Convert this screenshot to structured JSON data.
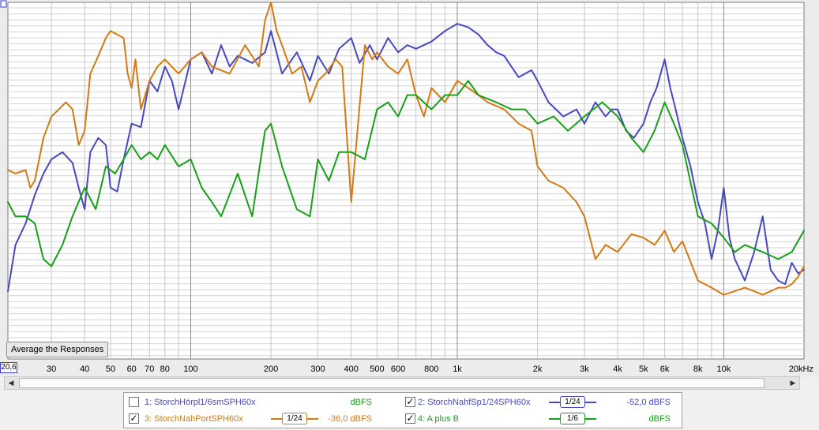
{
  "button": {
    "average_label": "Average the Responses"
  },
  "freq_start": "20,6",
  "scroll": {
    "left_arrow": "◀",
    "right_arrow": "▶"
  },
  "colors": {
    "blue": "#4848c0",
    "orange": "#d47a12",
    "green": "#18a018"
  },
  "legend": {
    "items": [
      {
        "index_name": "1: StorchHörpl1/6smSPH60x",
        "checked": false,
        "check_mark": "",
        "smoothing": "",
        "level": "dBFS",
        "color": "#4848c0"
      },
      {
        "index_name": "2: StorchNahfSp1/24SPH60x",
        "checked": true,
        "check_mark": "✓",
        "smoothing": "1/24",
        "level": "-52,0 dBFS",
        "color": "#4848c0"
      },
      {
        "index_name": "3: StorchNahPortSPH60x",
        "checked": true,
        "check_mark": "✓",
        "smoothing": "1/24",
        "level": "-36,0 dBFS",
        "color": "#d47a12"
      },
      {
        "index_name": "4: A plus B",
        "checked": true,
        "check_mark": "✓",
        "smoothing": "1/6",
        "level": "dBFS",
        "color": "#18a018"
      }
    ]
  },
  "chart_data": {
    "type": "line",
    "x_scale": "log",
    "xlim": [
      20.6,
      20000
    ],
    "x_tick_labels": [
      "30",
      "40",
      "50",
      "60",
      "70",
      "80",
      "100",
      "200",
      "300",
      "400",
      "500",
      "600",
      "800",
      "1k",
      "2k",
      "3k",
      "4k",
      "5k",
      "6k",
      "8k",
      "10k",
      "20kHz"
    ],
    "x_tick_values": [
      30,
      40,
      50,
      60,
      70,
      80,
      100,
      200,
      300,
      400,
      500,
      600,
      800,
      1000,
      2000,
      3000,
      4000,
      5000,
      6000,
      8000,
      10000,
      20000
    ],
    "ylim": [
      0,
      100
    ],
    "y_axis_labels": false,
    "grid": true,
    "series": [
      {
        "name": "2: StorchNahfSp1/24SPH60x",
        "color": "#4848c0",
        "x": [
          20.6,
          22,
          24,
          26,
          28,
          30,
          33,
          36,
          38,
          40,
          42,
          45,
          48,
          50,
          53,
          56,
          60,
          65,
          70,
          75,
          80,
          85,
          90,
          100,
          110,
          120,
          130,
          140,
          150,
          170,
          190,
          200,
          220,
          250,
          280,
          300,
          330,
          360,
          400,
          430,
          470,
          500,
          550,
          600,
          650,
          700,
          800,
          900,
          1000,
          1100,
          1200,
          1300,
          1400,
          1500,
          1700,
          1900,
          2000,
          2200,
          2500,
          2800,
          3000,
          3300,
          3600,
          3800,
          4000,
          4300,
          4600,
          5000,
          5300,
          5600,
          6000,
          6300,
          6600,
          7000,
          7500,
          8000,
          8500,
          9000,
          9500,
          10000,
          10500,
          11000,
          12000,
          13000,
          14000,
          15000,
          16000,
          17000,
          18000,
          19000,
          20000
        ],
        "y": [
          19,
          32,
          38,
          46,
          52,
          56,
          58,
          55,
          48,
          42,
          58,
          62,
          60,
          48,
          47,
          56,
          66,
          65,
          78,
          75,
          82,
          78,
          70,
          84,
          86,
          80,
          88,
          82,
          85,
          83,
          86,
          92,
          80,
          86,
          78,
          85,
          80,
          87,
          90,
          83,
          88,
          84,
          90,
          86,
          88,
          87,
          89,
          92,
          94,
          93,
          91,
          88,
          86,
          85,
          79,
          81,
          78,
          72,
          68,
          70,
          66,
          72,
          68,
          70,
          70,
          64,
          62,
          66,
          72,
          76,
          84,
          76,
          70,
          62,
          54,
          44,
          38,
          28,
          36,
          48,
          34,
          28,
          22,
          30,
          40,
          25,
          22,
          21,
          27,
          24,
          25
        ]
      },
      {
        "name": "3: StorchNahPortSPH60x",
        "color": "#d47a12",
        "x": [
          20.6,
          22,
          24,
          25,
          26,
          28,
          30,
          32,
          34,
          36,
          38,
          40,
          42,
          45,
          48,
          50,
          53,
          56,
          58,
          60,
          62,
          65,
          70,
          75,
          80,
          90,
          100,
          110,
          120,
          140,
          160,
          180,
          190,
          200,
          210,
          220,
          240,
          260,
          280,
          300,
          320,
          350,
          370,
          400,
          420,
          450,
          480,
          500,
          550,
          600,
          650,
          700,
          750,
          800,
          900,
          1000,
          1100,
          1200,
          1300,
          1500,
          1700,
          1900,
          2000,
          2200,
          2500,
          2800,
          3000,
          3300,
          3600,
          4000,
          4500,
          5000,
          5500,
          6000,
          6500,
          7000,
          8000,
          9000,
          10000,
          11000,
          12000,
          13000,
          14000,
          15000,
          16000,
          17000,
          18000,
          19000,
          20000
        ],
        "y": [
          53,
          52,
          53,
          48,
          50,
          62,
          68,
          70,
          72,
          70,
          60,
          64,
          80,
          85,
          90,
          92,
          91,
          90,
          80,
          76,
          84,
          70,
          78,
          82,
          84,
          80,
          84,
          86,
          82,
          80,
          88,
          82,
          95,
          100,
          92,
          88,
          80,
          82,
          72,
          78,
          80,
          84,
          82,
          44,
          62,
          88,
          84,
          86,
          82,
          80,
          84,
          74,
          68,
          76,
          72,
          78,
          76,
          74,
          72,
          70,
          66,
          64,
          54,
          50,
          48,
          44,
          40,
          28,
          32,
          30,
          35,
          34,
          32,
          36,
          30,
          33,
          22,
          20,
          18,
          19,
          20,
          19,
          18,
          19,
          20,
          20,
          21,
          23,
          26
        ]
      },
      {
        "name": "4: A plus B",
        "color": "#18a018",
        "x": [
          20.6,
          22,
          24,
          26,
          28,
          30,
          33,
          36,
          40,
          44,
          48,
          52,
          56,
          60,
          65,
          70,
          75,
          80,
          90,
          100,
          110,
          120,
          130,
          150,
          170,
          190,
          200,
          220,
          250,
          280,
          300,
          330,
          360,
          400,
          450,
          500,
          550,
          600,
          650,
          700,
          800,
          900,
          1000,
          1100,
          1200,
          1400,
          1600,
          1800,
          2000,
          2300,
          2600,
          3000,
          3500,
          4000,
          4500,
          5000,
          5500,
          6000,
          6500,
          7000,
          8000,
          9000,
          10000,
          11000,
          12000,
          14000,
          16000,
          18000,
          20000
        ],
        "y": [
          44,
          40,
          40,
          38,
          28,
          26,
          32,
          40,
          48,
          42,
          54,
          52,
          56,
          60,
          56,
          58,
          56,
          60,
          54,
          56,
          48,
          44,
          40,
          52,
          40,
          64,
          66,
          54,
          42,
          40,
          56,
          50,
          58,
          58,
          56,
          70,
          72,
          68,
          74,
          74,
          70,
          74,
          74,
          78,
          74,
          72,
          70,
          70,
          66,
          68,
          64,
          68,
          72,
          68,
          62,
          58,
          64,
          72,
          66,
          60,
          40,
          38,
          34,
          30,
          32,
          30,
          28,
          30,
          36
        ]
      }
    ]
  }
}
